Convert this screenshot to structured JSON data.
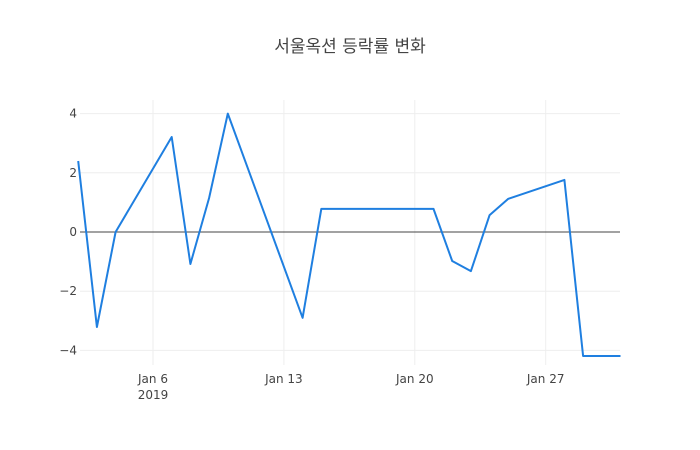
{
  "chart_data": {
    "type": "line",
    "title": "서울옥션 등락률 변화",
    "xlabel": "",
    "ylabel": "",
    "x": [
      "2019-01-02",
      "2019-01-03",
      "2019-01-04",
      "2019-01-07",
      "2019-01-08",
      "2019-01-09",
      "2019-01-10",
      "2019-01-14",
      "2019-01-15",
      "2019-01-21",
      "2019-01-22",
      "2019-01-23",
      "2019-01-24",
      "2019-01-25",
      "2019-01-28",
      "2019-01-29",
      "2019-01-31"
    ],
    "series": [
      {
        "name": "등락률",
        "color": "#1f7fe0",
        "values": [
          2.4,
          -3.21,
          0.0,
          3.21,
          -1.08,
          1.15,
          4.0,
          -2.9,
          0.78,
          0.78,
          -0.98,
          -1.32,
          0.57,
          1.12,
          1.76,
          -4.19,
          -4.19
        ]
      }
    ],
    "x_ticks": [
      {
        "label": "Jan 6",
        "sublabel": "2019",
        "date": "2019-01-06"
      },
      {
        "label": "Jan 13",
        "sublabel": "",
        "date": "2019-01-13"
      },
      {
        "label": "Jan 20",
        "sublabel": "",
        "date": "2019-01-20"
      },
      {
        "label": "Jan 27",
        "sublabel": "",
        "date": "2019-01-27"
      }
    ],
    "y_ticks": [
      4,
      2,
      0,
      -2,
      -4
    ],
    "y_tick_labels": [
      "4",
      "2",
      "0",
      "−2",
      "−4"
    ],
    "ylim": [
      -4.6,
      4.5
    ],
    "grid": true,
    "zero_line": true,
    "legend": "none"
  }
}
